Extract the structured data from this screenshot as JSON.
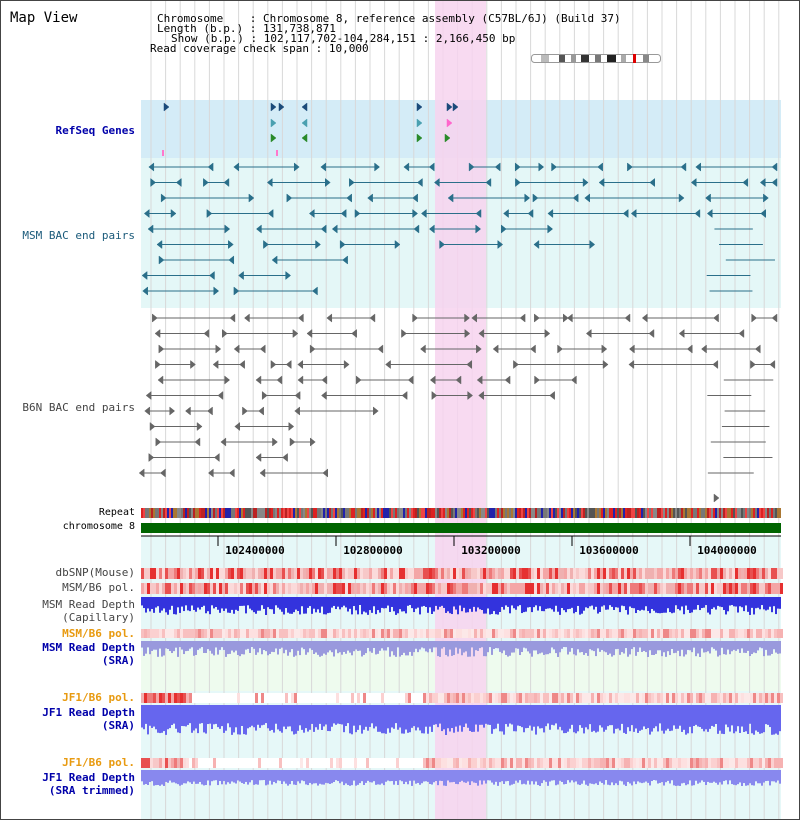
{
  "page": {
    "title": "Map View"
  },
  "header": {
    "chromosome_label": "Chromosome",
    "chromosome_value": "Chromosome 8, reference assembly (C57BL/6J) (Build 37)",
    "length_label": "Length (b.p.)",
    "length_value": "131,738,871",
    "show_label": "Show (b.p.)",
    "show_value": "102,117,702-104,284,151 : 2,166,450 bp",
    "coverage_label": "Read coverage check span",
    "coverage_value": "10,000"
  },
  "tracks": {
    "refseq": "RefSeq Genes",
    "msm_bac": "MSM BAC end pairs",
    "b6n_bac": "B6N BAC end pairs",
    "repeat": "Repeat",
    "chromosome": "chromosome 8",
    "dbsnp": "dbSNP(Mouse)",
    "msm_b6_pol_1": "MSM/B6 pol.",
    "msm_read_depth_cap_1": "MSM Read Depth",
    "msm_read_depth_cap_2": "(Capillary)",
    "msm_b6_pol_2": "MSM/B6 pol.",
    "msm_read_depth_sra_1": "MSM Read Depth",
    "msm_read_depth_sra_2": "(SRA)",
    "jf1_b6_pol_1": "JF1/B6 pol.",
    "jf1_read_depth_sra_1": "JF1 Read Depth",
    "jf1_read_depth_sra_2": "(SRA)",
    "jf1_b6_pol_2": "JF1/B6 pol.",
    "jf1_read_depth_trim_1": "JF1 Read Depth",
    "jf1_read_depth_trim_2": "(SRA trimmed)"
  },
  "ruler": {
    "ticks": [
      "102400000",
      "102800000",
      "103200000",
      "103600000",
      "104000000"
    ]
  },
  "colors": {
    "refseq_bg": "#d4ecf7",
    "msm_bg": "#e4f7f7",
    "b6n_bg": "#ffffff",
    "highlight": "#f7d4ee",
    "chromosome": "#006400",
    "msm_feature": "#2a6f8a",
    "b6n_feature": "#666666"
  }
}
